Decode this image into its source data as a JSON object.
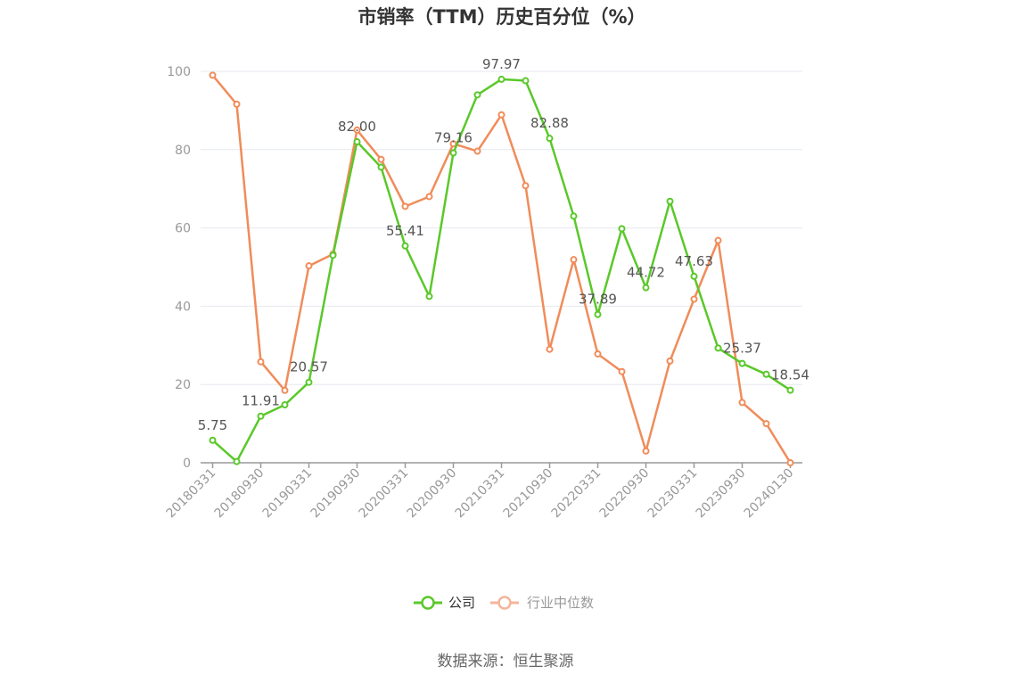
{
  "chart_data": {
    "type": "line",
    "title": "市销率（TTM）历史百分位（%）",
    "x": [
      "20180331",
      "20180630",
      "20180930",
      "20181231",
      "20190331",
      "20190630",
      "20190930",
      "20191231",
      "20200331",
      "20200630",
      "20200930",
      "20201231",
      "20210331",
      "20210630",
      "20210930",
      "20211231",
      "20220331",
      "20220630",
      "20220930",
      "20221231",
      "20230331",
      "20230630",
      "20230930",
      "20231231",
      "20240130"
    ],
    "xticks": [
      "20180331",
      "20180930",
      "20190331",
      "20190930",
      "20200331",
      "20200930",
      "20210331",
      "20210930",
      "20220331",
      "20220930",
      "20230331",
      "20230930",
      "20240130"
    ],
    "ylim": [
      0,
      100
    ],
    "yticks": [
      0,
      20,
      40,
      60,
      80,
      100
    ],
    "grid": true,
    "legend_position": "bottom",
    "series": [
      {
        "name": "公司",
        "color": "#5ac82a",
        "values": [
          5.75,
          0.3,
          11.91,
          14.8,
          20.57,
          53.0,
          82.0,
          75.5,
          55.41,
          42.5,
          79.16,
          94.0,
          97.97,
          97.6,
          82.88,
          63.0,
          37.89,
          59.8,
          44.72,
          66.8,
          47.63,
          29.3,
          25.37,
          22.6,
          18.54
        ],
        "labels": {
          "0": "5.75",
          "2": "11.91",
          "4": "20.57",
          "6": "82.00",
          "8": "55.41",
          "10": "79.16",
          "12": "97.97",
          "14": "82.88",
          "16": "37.89",
          "18": "44.72",
          "20": "47.63",
          "22": "25.37",
          "24": "18.54"
        }
      },
      {
        "name": "行业中位数",
        "color": "#f08c5a",
        "values": [
          99.0,
          91.6,
          25.8,
          18.5,
          50.3,
          53.3,
          85.0,
          77.5,
          65.5,
          68.0,
          81.5,
          79.6,
          88.9,
          70.8,
          29.0,
          51.9,
          27.8,
          23.3,
          3.0,
          26.0,
          41.8,
          56.8,
          15.4,
          10.0,
          0.0
        ]
      }
    ]
  },
  "legend": {
    "items": [
      {
        "label": "公司",
        "color": "#5ac82a",
        "active": true
      },
      {
        "label": "行业中位数",
        "color": "#f5b49a",
        "active": false
      }
    ]
  },
  "source": "数据来源：恒生聚源"
}
